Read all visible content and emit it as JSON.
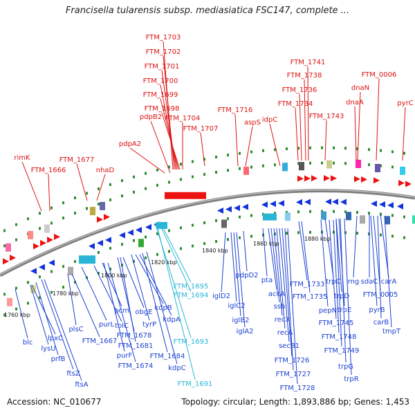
{
  "title": "Francisella tularensis subsp. mediasiatica FSC147, complete ...",
  "footer": {
    "accession": "Accession: NC_010677",
    "summary": "Topology: circular; Length: 1,893,886 bp; Genes: 1,453"
  },
  "colors": {
    "forward": "#ee1111",
    "reverse": "#1133dd",
    "cyan": "#29b6d6",
    "backbone": "#808080",
    "tick_dot": "#2e8b2e"
  },
  "kbp_labels": [
    "1760 kbp",
    "1780 kbp",
    "1800 kbp",
    "1820 kbp",
    "1840 kbp",
    "1860 kbp",
    "1880 kbp"
  ],
  "top_labels": [
    "FTM_1703",
    "FTM_1702",
    "FTM_1701",
    "FTM_1700",
    "FTM_1699",
    "FTM_1698",
    "pdpB2",
    "FTM_1704",
    "FTM_1707",
    "pdpA2",
    "FTM_1716",
    "aspS",
    "idpC",
    "FTM_1741",
    "FTM_1738",
    "FTM_1736",
    "FTM_1734",
    "FTM_1743",
    "FTM_0006",
    "dnaN",
    "dnaA",
    "pyrC",
    "rimK",
    "FTM_1666",
    "FTM_1677",
    "nhaD"
  ],
  "bottom_labels": [
    "FTM_1695",
    "FTM_1694",
    "FTM_1693",
    "FTM_1691",
    "blc",
    "lpxC",
    "lysU",
    "prfB",
    "ftsZ",
    "ftsA",
    "plsC",
    "FTM_1667",
    "purL",
    "tolC",
    "pcm",
    "purF",
    "FTM_1674",
    "obgE",
    "FTM_1678",
    "FTM_1681",
    "tyrP",
    "kdpB",
    "kdpA",
    "FTM_1684",
    "kdpC",
    "iglD2",
    "iglC2",
    "iglB2",
    "iglA2",
    "pdpD2",
    "pta",
    "ackA",
    "ssb",
    "recX",
    "recA",
    "secB1",
    "FTM_1726",
    "FTM_1727",
    "FTM_1728",
    "FTM_1733",
    "FTM_1735",
    "pepN",
    "FTM_1745",
    "FTM_1748",
    "FTM_1749",
    "trpC",
    "trpD",
    "trpE",
    "trpG",
    "trpR",
    "rng",
    "sdaC",
    "carA",
    "FTM_0005",
    "pyrB",
    "carB",
    "tmpT"
  ]
}
